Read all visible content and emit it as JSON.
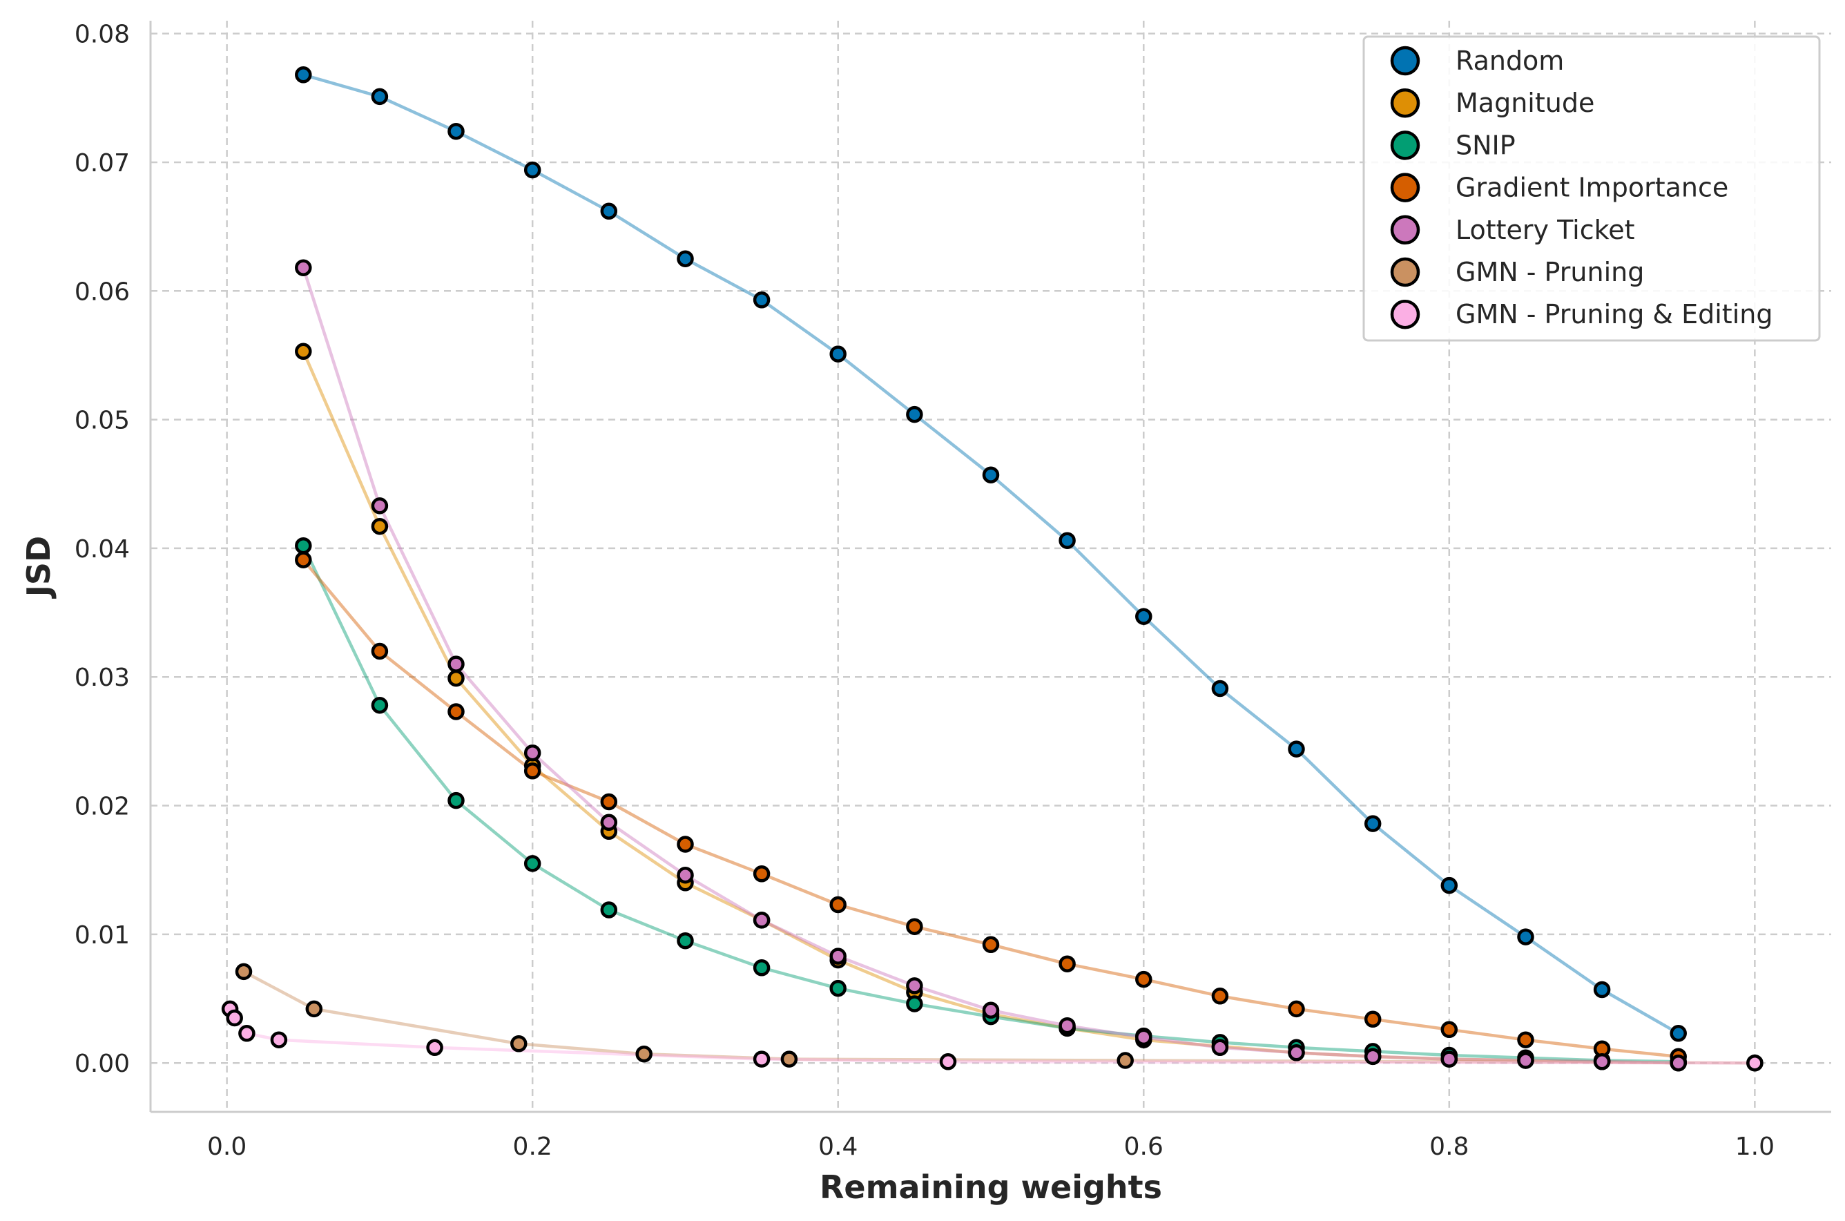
{
  "chart_data": {
    "type": "line",
    "title": "",
    "xlabel": "Remaining weights",
    "ylabel": "JSD",
    "xlim": [
      -0.05,
      1.05
    ],
    "ylim": [
      -0.0038,
      0.081
    ],
    "x_ticks": [
      0.0,
      0.2,
      0.4,
      0.6,
      0.8,
      1.0
    ],
    "x_tick_labels": [
      "0.0",
      "0.2",
      "0.4",
      "0.6",
      "0.8",
      "1.0"
    ],
    "y_ticks": [
      0.0,
      0.01,
      0.02,
      0.03,
      0.04,
      0.05,
      0.06,
      0.07,
      0.08
    ],
    "y_tick_labels": [
      "0.00",
      "0.01",
      "0.02",
      "0.03",
      "0.04",
      "0.05",
      "0.06",
      "0.07",
      "0.08"
    ],
    "grid": true,
    "legend_position": "top-right",
    "series": [
      {
        "name": "Random",
        "color": "#0173b2",
        "x": [
          0.05,
          0.1,
          0.15,
          0.2,
          0.25,
          0.3,
          0.35,
          0.4,
          0.45,
          0.5,
          0.55,
          0.6,
          0.65,
          0.7,
          0.75,
          0.8,
          0.85,
          0.9,
          0.95
        ],
        "y": [
          0.0768,
          0.0751,
          0.0724,
          0.0694,
          0.0662,
          0.0625,
          0.0593,
          0.0551,
          0.0504,
          0.0457,
          0.0406,
          0.0347,
          0.0291,
          0.0244,
          0.0186,
          0.0138,
          0.0098,
          0.0057,
          0.0023
        ]
      },
      {
        "name": "Magnitude",
        "color": "#de8f05",
        "x": [
          0.05,
          0.1,
          0.15,
          0.2,
          0.25,
          0.3,
          0.35,
          0.4,
          0.45,
          0.5,
          0.55,
          0.6,
          0.65,
          0.7,
          0.75,
          0.8,
          0.85,
          0.9,
          0.95
        ],
        "y": [
          0.0553,
          0.0417,
          0.0299,
          0.0231,
          0.018,
          0.014,
          0.0111,
          0.008,
          0.0055,
          0.0038,
          0.0027,
          0.0018,
          0.0013,
          0.0008,
          0.0005,
          0.0003,
          0.0002,
          0.0001,
          0.0
        ]
      },
      {
        "name": "SNIP",
        "color": "#029e73",
        "x": [
          0.05,
          0.1,
          0.15,
          0.2,
          0.25,
          0.3,
          0.35,
          0.4,
          0.45,
          0.5,
          0.55,
          0.6,
          0.65,
          0.7,
          0.75,
          0.8,
          0.85,
          0.9,
          0.95
        ],
        "y": [
          0.0402,
          0.0278,
          0.0204,
          0.0155,
          0.0119,
          0.0095,
          0.0074,
          0.0058,
          0.0046,
          0.0036,
          0.0027,
          0.0021,
          0.0016,
          0.0012,
          0.0009,
          0.0006,
          0.0004,
          0.0002,
          0.0001
        ]
      },
      {
        "name": "Gradient Importance",
        "color": "#d55e00",
        "x": [
          0.05,
          0.1,
          0.15,
          0.2,
          0.25,
          0.3,
          0.35,
          0.4,
          0.45,
          0.5,
          0.55,
          0.6,
          0.65,
          0.7,
          0.75,
          0.8,
          0.85,
          0.9,
          0.95
        ],
        "y": [
          0.0391,
          0.032,
          0.0273,
          0.0227,
          0.0203,
          0.017,
          0.0147,
          0.0123,
          0.0106,
          0.0092,
          0.0077,
          0.0065,
          0.0052,
          0.0042,
          0.0034,
          0.0026,
          0.0018,
          0.0011,
          0.0005
        ]
      },
      {
        "name": "Lottery Ticket",
        "color": "#cc78bc",
        "x": [
          0.05,
          0.1,
          0.15,
          0.2,
          0.25,
          0.3,
          0.35,
          0.4,
          0.45,
          0.5,
          0.55,
          0.6,
          0.65,
          0.7,
          0.75,
          0.8,
          0.85,
          0.9,
          0.95
        ],
        "y": [
          0.0618,
          0.0433,
          0.031,
          0.0241,
          0.0187,
          0.0146,
          0.0111,
          0.0083,
          0.006,
          0.0041,
          0.0029,
          0.002,
          0.0012,
          0.0008,
          0.0005,
          0.0003,
          0.0002,
          0.0001,
          0.0
        ]
      },
      {
        "name": "GMN - Pruning",
        "color": "#ca9161",
        "x": [
          0.011,
          0.057,
          0.191,
          0.273,
          0.368,
          0.588,
          1.0
        ],
        "y": [
          0.0071,
          0.0042,
          0.0015,
          0.0007,
          0.0003,
          0.0002,
          0.0
        ]
      },
      {
        "name": "GMN - Pruning & Editing",
        "color": "#fbafe4",
        "x": [
          0.002,
          0.005,
          0.013,
          0.034,
          0.136,
          0.35,
          0.472,
          1.0
        ],
        "y": [
          0.0042,
          0.0035,
          0.0023,
          0.0018,
          0.0012,
          0.0003,
          0.0001,
          0.0
        ]
      }
    ]
  }
}
